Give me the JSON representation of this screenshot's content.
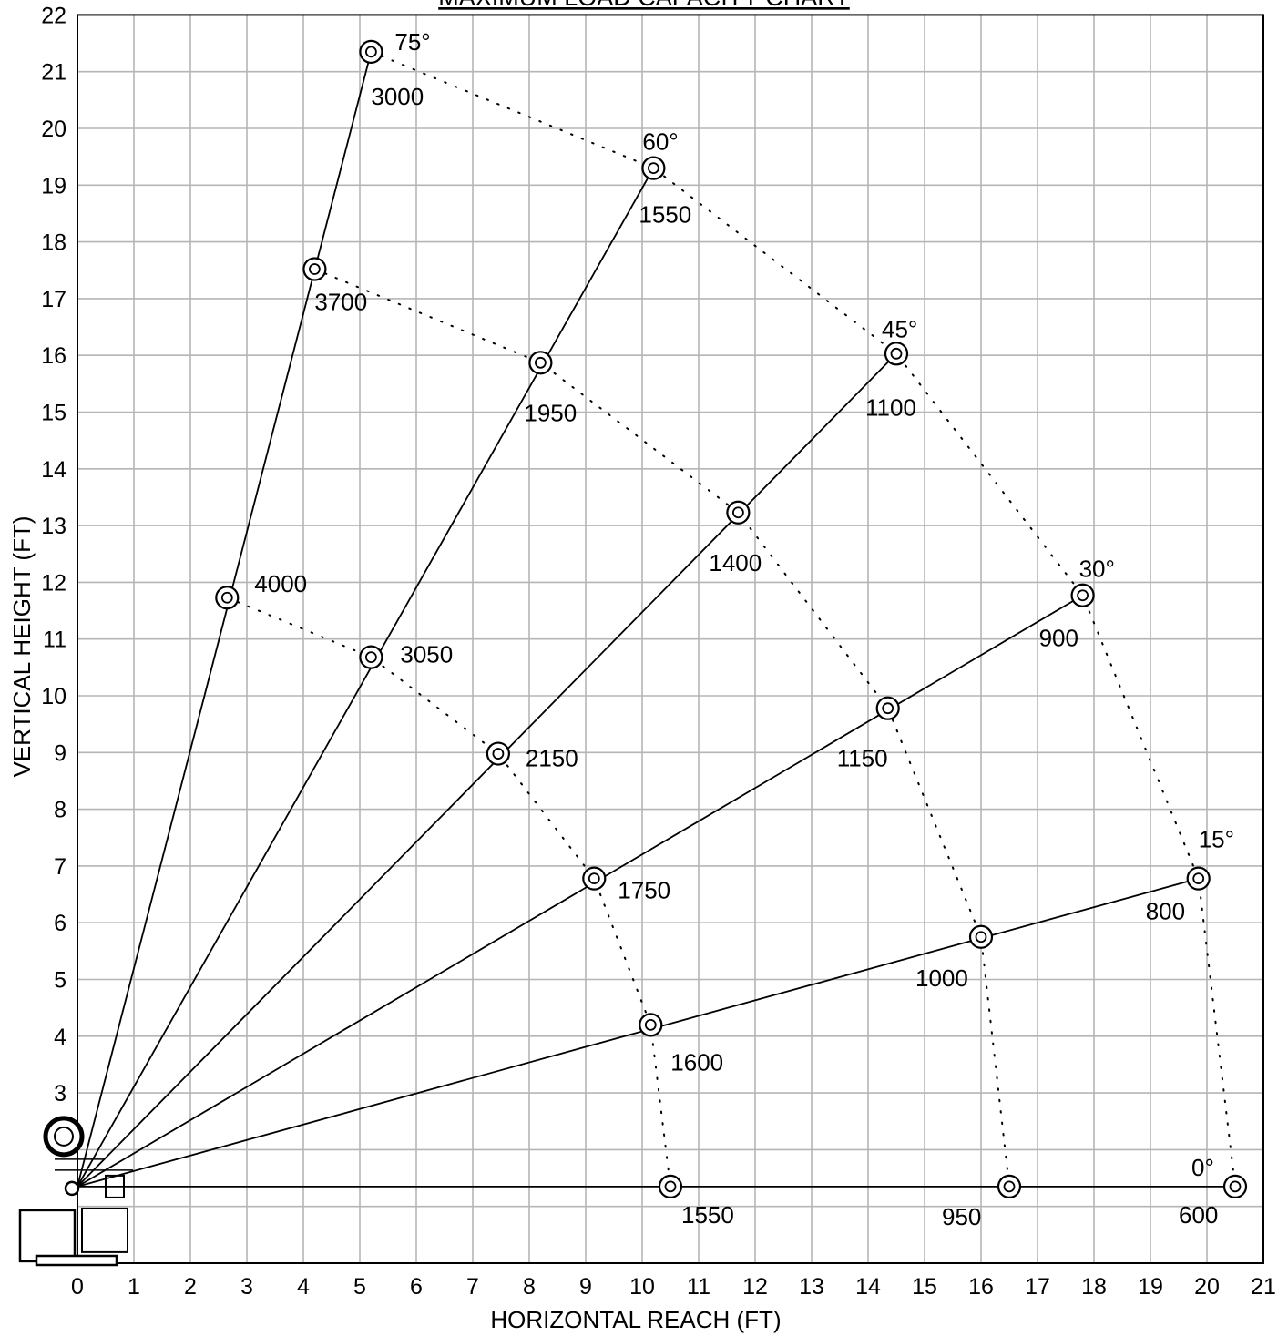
{
  "chart_data": {
    "type": "scatter",
    "title": "MAXIMUM LOAD CAPACITY CHART",
    "xlabel": "HORIZONTAL REACH (FT)",
    "ylabel": "VERTICAL HEIGHT (FT)",
    "xlim": [
      0,
      21
    ],
    "ylim": [
      0,
      22
    ],
    "grid": true,
    "x_ticks": [
      "0",
      "1",
      "2",
      "3",
      "4",
      "5",
      "6",
      "7",
      "8",
      "9",
      "10",
      "11",
      "12",
      "13",
      "14",
      "15",
      "16",
      "17",
      "18",
      "19",
      "20",
      "21"
    ],
    "y_ticks": [
      "3",
      "4",
      "5",
      "6",
      "7",
      "8",
      "9",
      "10",
      "11",
      "12",
      "13",
      "14",
      "15",
      "16",
      "17",
      "18",
      "19",
      "20",
      "21",
      "22"
    ],
    "pivot": {
      "x": 0,
      "y": 1.35
    },
    "booms": [
      {
        "angle": "75°",
        "points": [
          {
            "x": 2.65,
            "y": 11.73,
            "load": "4000"
          },
          {
            "x": 4.2,
            "y": 17.52,
            "load": "3700"
          },
          {
            "x": 5.2,
            "y": 21.35,
            "load": "3000"
          }
        ]
      },
      {
        "angle": "60°",
        "points": [
          {
            "x": 5.2,
            "y": 10.68,
            "load": "3050"
          },
          {
            "x": 8.2,
            "y": 15.87,
            "load": "1950"
          },
          {
            "x": 10.2,
            "y": 19.3,
            "load": "1550"
          }
        ]
      },
      {
        "angle": "45°",
        "points": [
          {
            "x": 7.45,
            "y": 8.98,
            "load": "2150"
          },
          {
            "x": 11.7,
            "y": 13.23,
            "load": "1400"
          },
          {
            "x": 14.5,
            "y": 16.03,
            "load": "1100"
          }
        ]
      },
      {
        "angle": "30°",
        "points": [
          {
            "x": 9.15,
            "y": 6.78,
            "load": "1750"
          },
          {
            "x": 14.35,
            "y": 9.78,
            "load": "1150"
          },
          {
            "x": 17.8,
            "y": 11.77,
            "load": "900"
          }
        ]
      },
      {
        "angle": "15°",
        "points": [
          {
            "x": 10.15,
            "y": 4.2,
            "load": "1600"
          },
          {
            "x": 16.0,
            "y": 5.75,
            "load": "1000"
          },
          {
            "x": 19.85,
            "y": 6.78,
            "load": "800"
          }
        ]
      },
      {
        "angle": "0°",
        "points": [
          {
            "x": 10.5,
            "y": 1.35,
            "load": "1550"
          },
          {
            "x": 16.5,
            "y": 1.35,
            "load": "950"
          },
          {
            "x": 20.5,
            "y": 1.35,
            "load": "600"
          }
        ]
      }
    ]
  }
}
